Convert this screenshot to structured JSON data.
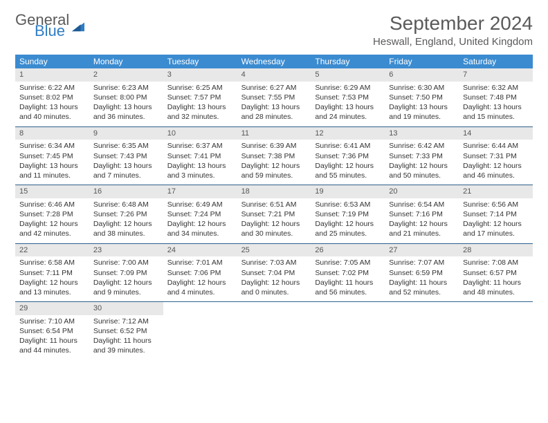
{
  "logo": {
    "word1": "General",
    "word2": "Blue"
  },
  "title": "September 2024",
  "location": "Heswall, England, United Kingdom",
  "colors": {
    "header_bg": "#3b8bd0",
    "header_text": "#ffffff",
    "daynum_bg": "#e8e8e8",
    "rule": "#2d5f8a",
    "body_text": "#333333",
    "title_text": "#5a5a5a",
    "logo_blue": "#2f7cc4"
  },
  "weekdays": [
    "Sunday",
    "Monday",
    "Tuesday",
    "Wednesday",
    "Thursday",
    "Friday",
    "Saturday"
  ],
  "weeks": [
    [
      {
        "n": "1",
        "sunrise": "Sunrise: 6:22 AM",
        "sunset": "Sunset: 8:02 PM",
        "day": "Daylight: 13 hours and 40 minutes."
      },
      {
        "n": "2",
        "sunrise": "Sunrise: 6:23 AM",
        "sunset": "Sunset: 8:00 PM",
        "day": "Daylight: 13 hours and 36 minutes."
      },
      {
        "n": "3",
        "sunrise": "Sunrise: 6:25 AM",
        "sunset": "Sunset: 7:57 PM",
        "day": "Daylight: 13 hours and 32 minutes."
      },
      {
        "n": "4",
        "sunrise": "Sunrise: 6:27 AM",
        "sunset": "Sunset: 7:55 PM",
        "day": "Daylight: 13 hours and 28 minutes."
      },
      {
        "n": "5",
        "sunrise": "Sunrise: 6:29 AM",
        "sunset": "Sunset: 7:53 PM",
        "day": "Daylight: 13 hours and 24 minutes."
      },
      {
        "n": "6",
        "sunrise": "Sunrise: 6:30 AM",
        "sunset": "Sunset: 7:50 PM",
        "day": "Daylight: 13 hours and 19 minutes."
      },
      {
        "n": "7",
        "sunrise": "Sunrise: 6:32 AM",
        "sunset": "Sunset: 7:48 PM",
        "day": "Daylight: 13 hours and 15 minutes."
      }
    ],
    [
      {
        "n": "8",
        "sunrise": "Sunrise: 6:34 AM",
        "sunset": "Sunset: 7:45 PM",
        "day": "Daylight: 13 hours and 11 minutes."
      },
      {
        "n": "9",
        "sunrise": "Sunrise: 6:35 AM",
        "sunset": "Sunset: 7:43 PM",
        "day": "Daylight: 13 hours and 7 minutes."
      },
      {
        "n": "10",
        "sunrise": "Sunrise: 6:37 AM",
        "sunset": "Sunset: 7:41 PM",
        "day": "Daylight: 13 hours and 3 minutes."
      },
      {
        "n": "11",
        "sunrise": "Sunrise: 6:39 AM",
        "sunset": "Sunset: 7:38 PM",
        "day": "Daylight: 12 hours and 59 minutes."
      },
      {
        "n": "12",
        "sunrise": "Sunrise: 6:41 AM",
        "sunset": "Sunset: 7:36 PM",
        "day": "Daylight: 12 hours and 55 minutes."
      },
      {
        "n": "13",
        "sunrise": "Sunrise: 6:42 AM",
        "sunset": "Sunset: 7:33 PM",
        "day": "Daylight: 12 hours and 50 minutes."
      },
      {
        "n": "14",
        "sunrise": "Sunrise: 6:44 AM",
        "sunset": "Sunset: 7:31 PM",
        "day": "Daylight: 12 hours and 46 minutes."
      }
    ],
    [
      {
        "n": "15",
        "sunrise": "Sunrise: 6:46 AM",
        "sunset": "Sunset: 7:28 PM",
        "day": "Daylight: 12 hours and 42 minutes."
      },
      {
        "n": "16",
        "sunrise": "Sunrise: 6:48 AM",
        "sunset": "Sunset: 7:26 PM",
        "day": "Daylight: 12 hours and 38 minutes."
      },
      {
        "n": "17",
        "sunrise": "Sunrise: 6:49 AM",
        "sunset": "Sunset: 7:24 PM",
        "day": "Daylight: 12 hours and 34 minutes."
      },
      {
        "n": "18",
        "sunrise": "Sunrise: 6:51 AM",
        "sunset": "Sunset: 7:21 PM",
        "day": "Daylight: 12 hours and 30 minutes."
      },
      {
        "n": "19",
        "sunrise": "Sunrise: 6:53 AM",
        "sunset": "Sunset: 7:19 PM",
        "day": "Daylight: 12 hours and 25 minutes."
      },
      {
        "n": "20",
        "sunrise": "Sunrise: 6:54 AM",
        "sunset": "Sunset: 7:16 PM",
        "day": "Daylight: 12 hours and 21 minutes."
      },
      {
        "n": "21",
        "sunrise": "Sunrise: 6:56 AM",
        "sunset": "Sunset: 7:14 PM",
        "day": "Daylight: 12 hours and 17 minutes."
      }
    ],
    [
      {
        "n": "22",
        "sunrise": "Sunrise: 6:58 AM",
        "sunset": "Sunset: 7:11 PM",
        "day": "Daylight: 12 hours and 13 minutes."
      },
      {
        "n": "23",
        "sunrise": "Sunrise: 7:00 AM",
        "sunset": "Sunset: 7:09 PM",
        "day": "Daylight: 12 hours and 9 minutes."
      },
      {
        "n": "24",
        "sunrise": "Sunrise: 7:01 AM",
        "sunset": "Sunset: 7:06 PM",
        "day": "Daylight: 12 hours and 4 minutes."
      },
      {
        "n": "25",
        "sunrise": "Sunrise: 7:03 AM",
        "sunset": "Sunset: 7:04 PM",
        "day": "Daylight: 12 hours and 0 minutes."
      },
      {
        "n": "26",
        "sunrise": "Sunrise: 7:05 AM",
        "sunset": "Sunset: 7:02 PM",
        "day": "Daylight: 11 hours and 56 minutes."
      },
      {
        "n": "27",
        "sunrise": "Sunrise: 7:07 AM",
        "sunset": "Sunset: 6:59 PM",
        "day": "Daylight: 11 hours and 52 minutes."
      },
      {
        "n": "28",
        "sunrise": "Sunrise: 7:08 AM",
        "sunset": "Sunset: 6:57 PM",
        "day": "Daylight: 11 hours and 48 minutes."
      }
    ],
    [
      {
        "n": "29",
        "sunrise": "Sunrise: 7:10 AM",
        "sunset": "Sunset: 6:54 PM",
        "day": "Daylight: 11 hours and 44 minutes."
      },
      {
        "n": "30",
        "sunrise": "Sunrise: 7:12 AM",
        "sunset": "Sunset: 6:52 PM",
        "day": "Daylight: 11 hours and 39 minutes."
      },
      null,
      null,
      null,
      null,
      null
    ]
  ]
}
